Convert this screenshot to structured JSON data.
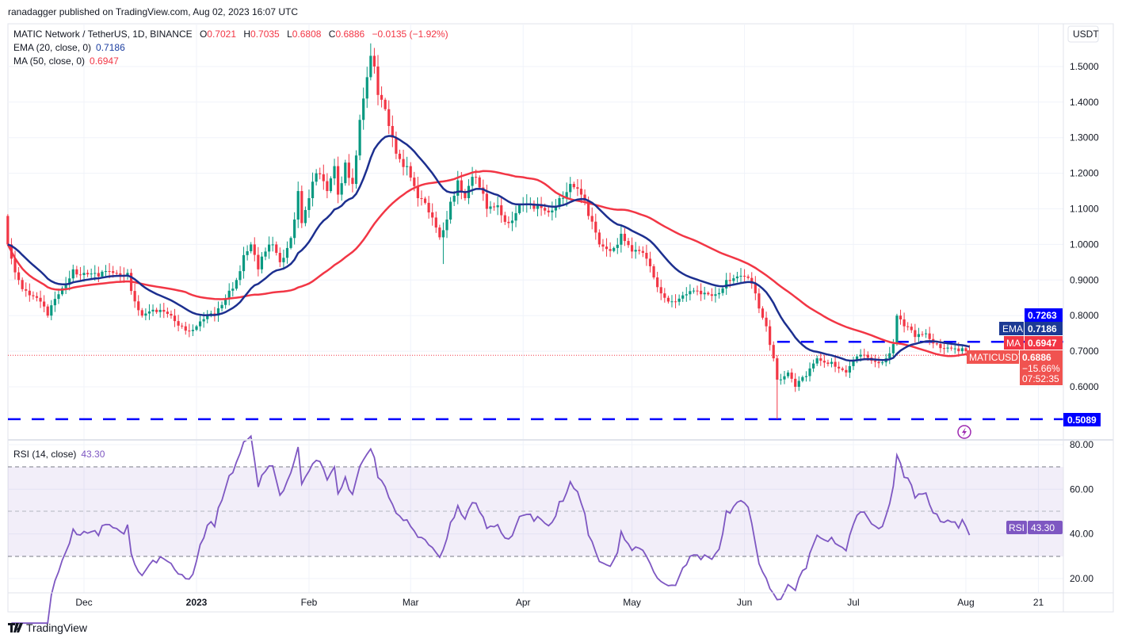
{
  "header": {
    "published": "ranadagger published on TradingView.com, Aug 02, 2023 16:07 UTC"
  },
  "legend": {
    "symbol": "MATIC Network / TetherUS, 1D, BINANCE",
    "o_label": "O",
    "o": "0.7021",
    "h_label": "H",
    "h": "0.7035",
    "l_label": "L",
    "l": "0.6808",
    "c_label": "C",
    "c": "0.6886",
    "change": "−0.0135 (−1.92%)",
    "ema_label": "EMA (20, close, 0)",
    "ema_value": "0.7186",
    "ma_label": "MA (50, close, 0)",
    "ma_value": "0.6947",
    "rsi_label": "RSI (14, close)",
    "rsi_value": "43.30"
  },
  "price_axis": {
    "currency": "USDT",
    "ticks": [
      "0.6000",
      "0.7000",
      "0.8000",
      "0.9000",
      "1.0000",
      "1.1000",
      "1.2000",
      "1.3000",
      "1.4000",
      "1.5000"
    ],
    "badges": {
      "resistance": "0.7263",
      "ema_tag": "EMA",
      "ema": "0.7186",
      "ma_tag": "MA",
      "ma": "0.6947",
      "symbol_tag": "MATICUSDT",
      "last": "0.6886",
      "pct": "−15.66%",
      "countdown": "07:52:35",
      "support": "0.5089"
    }
  },
  "rsi_axis": {
    "ticks": [
      "80.00",
      "60.00",
      "40.00",
      "20.00"
    ],
    "tag": "RSI",
    "value": "43.30"
  },
  "time_axis": {
    "ticks": [
      {
        "label": "Dec",
        "date": "2022-12-01"
      },
      {
        "label": "2023",
        "date": "2023-01-01"
      },
      {
        "label": "Feb",
        "date": "2023-02-01"
      },
      {
        "label": "Mar",
        "date": "2023-03-01"
      },
      {
        "label": "Apr",
        "date": "2023-04-01"
      },
      {
        "label": "May",
        "date": "2023-05-01"
      },
      {
        "label": "Jun",
        "date": "2023-06-01"
      },
      {
        "label": "Jul",
        "date": "2023-07-01"
      },
      {
        "label": "Aug",
        "date": "2023-08-01"
      },
      {
        "label": "21",
        "date": "2023-08-21"
      }
    ]
  },
  "footer": {
    "brand": "TradingView"
  },
  "colors": {
    "up": "#089981",
    "down": "#f23645",
    "ema": "#1c2f8f",
    "ma": "#f23645",
    "rsi": "#7e57c2",
    "levels": "#0000ff",
    "grid": "#f0f3fa"
  },
  "icons": {
    "alert": "lightning-icon",
    "logo": "tradingview-logo"
  },
  "chart_data": {
    "type": "candlestick",
    "interval": "1D",
    "symbol": "MATICUSDT",
    "ylim": [
      0.48,
      1.58
    ],
    "rsi_ylim": [
      10,
      85
    ],
    "rsi_levels": [
      70,
      50,
      30
    ],
    "horizontal_levels": [
      {
        "value": 0.7263,
        "style": "dashed",
        "from": "2023-06-10"
      },
      {
        "value": 0.5089,
        "style": "dashed",
        "from": "2022-11-10"
      }
    ],
    "last_close": 0.6886,
    "close_points": [
      [
        "2022-11-10",
        1.0
      ],
      [
        "2022-11-11",
        0.96
      ],
      [
        "2022-11-13",
        0.9
      ],
      [
        "2022-11-15",
        0.87
      ],
      [
        "2022-11-18",
        0.85
      ],
      [
        "2022-11-21",
        0.8
      ],
      [
        "2022-11-24",
        0.86
      ],
      [
        "2022-11-28",
        0.93
      ],
      [
        "2022-12-01",
        0.92
      ],
      [
        "2022-12-05",
        0.91
      ],
      [
        "2022-12-09",
        0.92
      ],
      [
        "2022-12-13",
        0.92
      ],
      [
        "2022-12-15",
        0.84
      ],
      [
        "2022-12-17",
        0.8
      ],
      [
        "2022-12-21",
        0.81
      ],
      [
        "2022-12-25",
        0.8
      ],
      [
        "2022-12-28",
        0.77
      ],
      [
        "2022-12-31",
        0.76
      ],
      [
        "2023-01-03",
        0.79
      ],
      [
        "2023-01-06",
        0.8
      ],
      [
        "2023-01-08",
        0.83
      ],
      [
        "2023-01-10",
        0.87
      ],
      [
        "2023-01-12",
        0.9
      ],
      [
        "2023-01-14",
        0.97
      ],
      [
        "2023-01-16",
        1.0
      ],
      [
        "2023-01-18",
        0.93
      ],
      [
        "2023-01-20",
        0.98
      ],
      [
        "2023-01-22",
        1.0
      ],
      [
        "2023-01-24",
        0.95
      ],
      [
        "2023-01-26",
        0.99
      ],
      [
        "2023-01-28",
        1.07
      ],
      [
        "2023-01-29",
        1.15
      ],
      [
        "2023-01-30",
        1.06
      ],
      [
        "2023-02-01",
        1.13
      ],
      [
        "2023-02-03",
        1.2
      ],
      [
        "2023-02-06",
        1.15
      ],
      [
        "2023-02-08",
        1.22
      ],
      [
        "2023-02-09",
        1.14
      ],
      [
        "2023-02-11",
        1.23
      ],
      [
        "2023-02-13",
        1.17
      ],
      [
        "2023-02-14",
        1.25
      ],
      [
        "2023-02-15",
        1.35
      ],
      [
        "2023-02-16",
        1.41
      ],
      [
        "2023-02-17",
        1.47
      ],
      [
        "2023-02-18",
        1.53
      ],
      [
        "2023-02-19",
        1.5
      ],
      [
        "2023-02-20",
        1.42
      ],
      [
        "2023-02-22",
        1.38
      ],
      [
        "2023-02-24",
        1.3
      ],
      [
        "2023-02-26",
        1.24
      ],
      [
        "2023-02-28",
        1.22
      ],
      [
        "2023-03-03",
        1.13
      ],
      [
        "2023-03-06",
        1.09
      ],
      [
        "2023-03-09",
        1.02
      ],
      [
        "2023-03-10",
        1.04
      ],
      [
        "2023-03-12",
        1.12
      ],
      [
        "2023-03-14",
        1.18
      ],
      [
        "2023-03-16",
        1.13
      ],
      [
        "2023-03-18",
        1.19
      ],
      [
        "2023-03-20",
        1.16
      ],
      [
        "2023-03-22",
        1.1
      ],
      [
        "2023-03-25",
        1.11
      ],
      [
        "2023-03-28",
        1.06
      ],
      [
        "2023-03-31",
        1.11
      ],
      [
        "2023-04-04",
        1.1
      ],
      [
        "2023-04-08",
        1.09
      ],
      [
        "2023-04-11",
        1.13
      ],
      [
        "2023-04-14",
        1.17
      ],
      [
        "2023-04-17",
        1.14
      ],
      [
        "2023-04-19",
        1.08
      ],
      [
        "2023-04-22",
        1.0
      ],
      [
        "2023-04-26",
        0.99
      ],
      [
        "2023-04-28",
        1.03
      ],
      [
        "2023-05-01",
        0.98
      ],
      [
        "2023-05-05",
        0.96
      ],
      [
        "2023-05-08",
        0.88
      ],
      [
        "2023-05-12",
        0.84
      ],
      [
        "2023-05-16",
        0.86
      ],
      [
        "2023-05-20",
        0.86
      ],
      [
        "2023-05-24",
        0.86
      ],
      [
        "2023-05-27",
        0.9
      ],
      [
        "2023-05-30",
        0.91
      ],
      [
        "2023-06-03",
        0.89
      ],
      [
        "2023-06-05",
        0.82
      ],
      [
        "2023-06-07",
        0.77
      ],
      [
        "2023-06-09",
        0.68
      ],
      [
        "2023-06-10",
        0.62
      ],
      [
        "2023-06-13",
        0.64
      ],
      [
        "2023-06-15",
        0.6
      ],
      [
        "2023-06-18",
        0.63
      ],
      [
        "2023-06-21",
        0.68
      ],
      [
        "2023-06-25",
        0.67
      ],
      [
        "2023-06-29",
        0.64
      ],
      [
        "2023-07-03",
        0.69
      ],
      [
        "2023-07-07",
        0.67
      ],
      [
        "2023-07-10",
        0.68
      ],
      [
        "2023-07-12",
        0.72
      ],
      [
        "2023-07-13",
        0.8
      ],
      [
        "2023-07-15",
        0.77
      ],
      [
        "2023-07-18",
        0.74
      ],
      [
        "2023-07-21",
        0.75
      ],
      [
        "2023-07-24",
        0.72
      ],
      [
        "2023-07-27",
        0.71
      ],
      [
        "2023-07-30",
        0.7
      ],
      [
        "2023-08-01",
        0.7
      ],
      [
        "2023-08-02",
        0.6886
      ]
    ]
  }
}
